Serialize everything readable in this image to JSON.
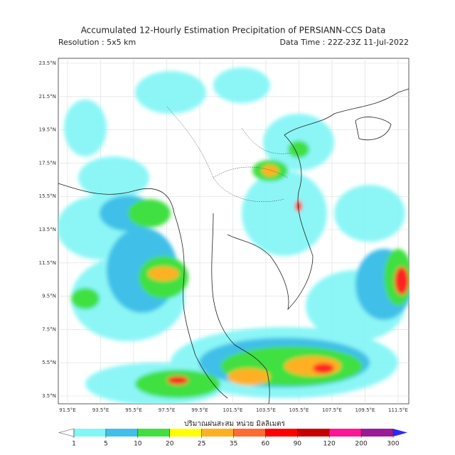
{
  "header": {
    "title": "Accumulated 12-Hourly Estimation Precipitation of PERSIANN-CCS Data",
    "resolution": "Resolution : 5x5 km",
    "data_time": "Data Time : 22Z-23Z 11-Jul-2022"
  },
  "map": {
    "lat_labels": [
      "23.5°N",
      "21.5°N",
      "19.5°N",
      "17.5°N",
      "15.5°N",
      "13.5°N",
      "11.5°N",
      "9.5°N",
      "7.5°N",
      "5.5°N",
      "3.5°N"
    ],
    "lon_labels": [
      "91.5°E",
      "93.5°E",
      "95.5°E",
      "97.5°E",
      "99.5°E",
      "101.5°E",
      "103.5°E",
      "105.5°E",
      "107.5°E",
      "109.5°E",
      "111.5°E"
    ]
  },
  "colorbar": {
    "label": "ปริมาณฝนสะสม หน่วย มิลลิเมตร",
    "ticks": [
      1,
      5,
      10,
      20,
      25,
      35,
      60,
      90,
      120,
      200,
      300
    ],
    "colors": [
      "#ffffff",
      "#80f6f6",
      "#40bfe8",
      "#40e040",
      "#ffff00",
      "#ffb020",
      "#ff6a30",
      "#ff0000",
      "#c80000",
      "#ff1493",
      "#9a1a9a",
      "#2a2aff"
    ]
  }
}
